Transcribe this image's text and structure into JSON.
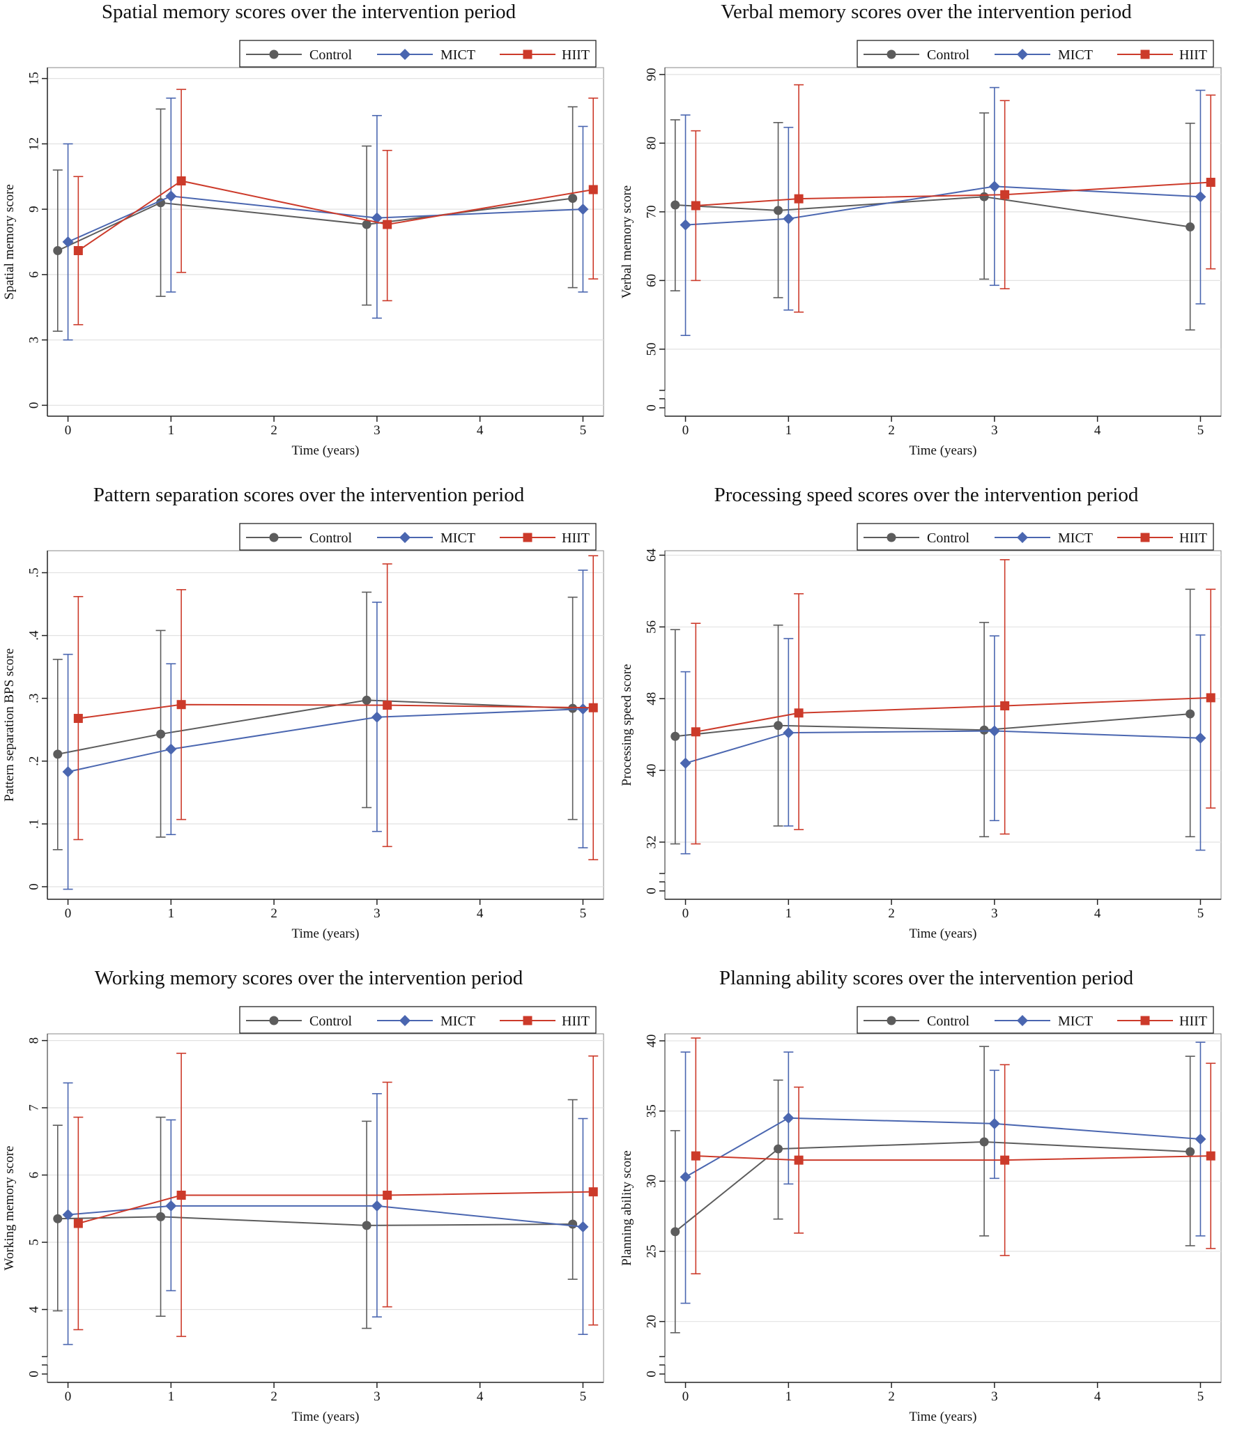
{
  "colors": {
    "control": "#5c5c5c",
    "mict": "#4a66b0",
    "hiit": "#cc3a2a"
  },
  "legend": {
    "control": "Control",
    "mict": "MICT",
    "hiit": "HIIT"
  },
  "chart_data": [
    {
      "type": "line",
      "title": "Spatial memory scores over the intervention period",
      "xlabel": "Time (years)",
      "ylabel": "Spatial memory score",
      "xticks": [
        "0",
        "1",
        "2",
        "3",
        "4",
        "5"
      ],
      "xlim": [
        -0.2,
        5.2
      ],
      "yticks": [
        {
          "v": 0,
          "l": "0"
        },
        {
          "v": 3,
          "l": "3"
        },
        {
          "v": 6,
          "l": "6"
        },
        {
          "v": 9,
          "l": "9"
        },
        {
          "v": 12,
          "l": "12"
        },
        {
          "v": 15,
          "l": "15"
        }
      ],
      "ylim": [
        -0.5,
        15.5
      ],
      "break": false,
      "grid": true,
      "x": [
        0,
        1,
        3,
        5
      ],
      "series": [
        {
          "key": "control",
          "name": "Control",
          "values": [
            7.1,
            9.3,
            8.3,
            9.5
          ],
          "lower": [
            3.4,
            5.0,
            4.6,
            5.4
          ],
          "upper": [
            10.8,
            13.6,
            11.9,
            13.7
          ]
        },
        {
          "key": "mict",
          "name": "MICT",
          "values": [
            7.5,
            9.6,
            8.6,
            9.0
          ],
          "lower": [
            3.0,
            5.2,
            4.0,
            5.2
          ],
          "upper": [
            12.0,
            14.1,
            13.3,
            12.8
          ]
        },
        {
          "key": "hiit",
          "name": "HIIT",
          "values": [
            7.1,
            10.3,
            8.3,
            9.9
          ],
          "lower": [
            3.7,
            6.1,
            4.8,
            5.8
          ],
          "upper": [
            10.5,
            14.5,
            11.7,
            14.1
          ]
        }
      ]
    },
    {
      "type": "line",
      "title": "Verbal memory scores over the intervention period",
      "xlabel": "Time (years)",
      "ylabel": "Verbal memory score",
      "xticks": [
        "0",
        "1",
        "2",
        "3",
        "4",
        "5"
      ],
      "xlim": [
        -0.2,
        5.2
      ],
      "yticks": [
        {
          "v": 50,
          "l": "50"
        },
        {
          "v": 60,
          "l": "60"
        },
        {
          "v": 70,
          "l": "70"
        },
        {
          "v": 80,
          "l": "80"
        },
        {
          "v": 90,
          "l": "90"
        }
      ],
      "ylim": [
        44,
        91
      ],
      "break": true,
      "zero_label": "0",
      "grid": true,
      "x": [
        0,
        1,
        3,
        5
      ],
      "series": [
        {
          "key": "control",
          "name": "Control",
          "values": [
            71.0,
            70.2,
            72.2,
            67.8
          ],
          "lower": [
            58.5,
            57.5,
            60.2,
            52.8
          ],
          "upper": [
            83.4,
            83.0,
            84.4,
            82.9
          ]
        },
        {
          "key": "mict",
          "name": "MICT",
          "values": [
            68.1,
            69.0,
            73.7,
            72.2
          ],
          "lower": [
            52.0,
            55.7,
            59.3,
            56.6
          ],
          "upper": [
            84.1,
            82.3,
            88.1,
            87.7
          ]
        },
        {
          "key": "hiit",
          "name": "HIIT",
          "values": [
            70.9,
            71.9,
            72.5,
            74.3
          ],
          "lower": [
            60.0,
            55.4,
            58.8,
            61.7
          ],
          "upper": [
            81.8,
            88.5,
            86.2,
            87.0
          ]
        }
      ]
    },
    {
      "type": "line",
      "title": "Pattern separation scores over the intervention period",
      "xlabel": "Time (years)",
      "ylabel": "Pattern separation BPS score",
      "xticks": [
        "0",
        "1",
        "2",
        "3",
        "4",
        "5"
      ],
      "xlim": [
        -0.2,
        5.2
      ],
      "yticks": [
        {
          "v": 0,
          "l": "0"
        },
        {
          "v": 0.1,
          "l": ".1"
        },
        {
          "v": 0.2,
          "l": ".2"
        },
        {
          "v": 0.3,
          "l": ".3"
        },
        {
          "v": 0.4,
          "l": ".4"
        },
        {
          "v": 0.5,
          "l": ".5"
        }
      ],
      "ylim": [
        -0.02,
        0.535
      ],
      "break": false,
      "grid": true,
      "x": [
        0,
        1,
        3,
        5
      ],
      "series": [
        {
          "key": "control",
          "name": "Control",
          "values": [
            0.211,
            0.243,
            0.297,
            0.284
          ],
          "lower": [
            0.059,
            0.079,
            0.126,
            0.107
          ],
          "upper": [
            0.362,
            0.408,
            0.469,
            0.461
          ]
        },
        {
          "key": "mict",
          "name": "MICT",
          "values": [
            0.183,
            0.219,
            0.27,
            0.283
          ],
          "lower": [
            -0.004,
            0.083,
            0.088,
            0.062
          ],
          "upper": [
            0.37,
            0.355,
            0.453,
            0.504
          ]
        },
        {
          "key": "hiit",
          "name": "HIIT",
          "values": [
            0.268,
            0.29,
            0.289,
            0.285
          ],
          "lower": [
            0.075,
            0.107,
            0.064,
            0.043
          ],
          "upper": [
            0.462,
            0.473,
            0.514,
            0.527
          ]
        }
      ]
    },
    {
      "type": "line",
      "title": "Processing speed scores over the intervention period",
      "xlabel": "Time (years)",
      "ylabel": "Processing speed score",
      "xticks": [
        "0",
        "1",
        "2",
        "3",
        "4",
        "5"
      ],
      "xlim": [
        -0.2,
        5.2
      ],
      "yticks": [
        {
          "v": 32,
          "l": "32"
        },
        {
          "v": 40,
          "l": "40"
        },
        {
          "v": 48,
          "l": "48"
        },
        {
          "v": 56,
          "l": "56"
        },
        {
          "v": 64,
          "l": "64"
        }
      ],
      "ylim": [
        28.5,
        64.5
      ],
      "break": true,
      "zero_label": "0",
      "grid": true,
      "x": [
        0,
        1,
        3,
        5
      ],
      "series": [
        {
          "key": "control",
          "name": "Control",
          "values": [
            43.8,
            45.0,
            44.5,
            46.3
          ],
          "lower": [
            31.8,
            33.8,
            32.6,
            32.6
          ],
          "upper": [
            55.7,
            56.2,
            56.5,
            60.2
          ]
        },
        {
          "key": "mict",
          "name": "MICT",
          "values": [
            40.8,
            44.2,
            44.4,
            43.6
          ],
          "lower": [
            30.7,
            33.8,
            34.4,
            31.1
          ],
          "upper": [
            51.0,
            54.7,
            55.0,
            55.1
          ]
        },
        {
          "key": "hiit",
          "name": "HIIT",
          "values": [
            44.3,
            46.4,
            47.2,
            48.1
          ],
          "lower": [
            31.8,
            33.4,
            32.9,
            35.8
          ],
          "upper": [
            56.4,
            59.7,
            63.5,
            60.2
          ]
        }
      ]
    },
    {
      "type": "line",
      "title": "Working memory scores over the intervention period",
      "xlabel": "Time (years)",
      "ylabel": "Working memory score",
      "xticks": [
        "0",
        "1",
        "2",
        "3",
        "4",
        "5"
      ],
      "xlim": [
        -0.2,
        5.2
      ],
      "yticks": [
        {
          "v": 4,
          "l": "4"
        },
        {
          "v": 5,
          "l": "5"
        },
        {
          "v": 6,
          "l": "6"
        },
        {
          "v": 7,
          "l": "7"
        },
        {
          "v": 8,
          "l": "8"
        }
      ],
      "ylim": [
        3.3,
        8.1
      ],
      "break": true,
      "zero_label": "0",
      "grid": true,
      "x": [
        0,
        1,
        3,
        5
      ],
      "series": [
        {
          "key": "control",
          "name": "Control",
          "values": [
            5.35,
            5.38,
            5.25,
            5.27
          ],
          "lower": [
            3.98,
            3.9,
            3.72,
            4.45
          ],
          "upper": [
            6.74,
            6.86,
            6.8,
            7.12
          ]
        },
        {
          "key": "mict",
          "name": "MICT",
          "values": [
            5.41,
            5.54,
            5.54,
            5.23
          ],
          "lower": [
            3.48,
            4.28,
            3.89,
            3.63
          ],
          "upper": [
            7.37,
            6.82,
            7.21,
            6.84
          ]
        },
        {
          "key": "hiit",
          "name": "HIIT",
          "values": [
            5.28,
            5.7,
            5.7,
            5.75
          ],
          "lower": [
            3.7,
            3.6,
            4.04,
            3.77
          ],
          "upper": [
            6.86,
            7.81,
            7.38,
            7.77
          ]
        }
      ]
    },
    {
      "type": "line",
      "title": "Planning ability scores over the intervention period",
      "xlabel": "Time (years)",
      "ylabel": "Planning ability score",
      "xticks": [
        "0",
        "1",
        "2",
        "3",
        "4",
        "5"
      ],
      "xlim": [
        -0.2,
        5.2
      ],
      "yticks": [
        {
          "v": 20,
          "l": "20"
        },
        {
          "v": 25,
          "l": "25"
        },
        {
          "v": 30,
          "l": "30"
        },
        {
          "v": 35,
          "l": "35"
        },
        {
          "v": 40,
          "l": "40"
        }
      ],
      "ylim": [
        17.5,
        40.5
      ],
      "break": true,
      "zero_label": "0",
      "grid": true,
      "x": [
        0,
        1,
        3,
        5
      ],
      "series": [
        {
          "key": "control",
          "name": "Control",
          "values": [
            26.4,
            32.3,
            32.8,
            32.1
          ],
          "lower": [
            19.2,
            27.3,
            26.1,
            25.4
          ],
          "upper": [
            33.6,
            37.2,
            39.6,
            38.9
          ]
        },
        {
          "key": "mict",
          "name": "MICT",
          "values": [
            30.3,
            34.5,
            34.1,
            33.0
          ],
          "lower": [
            21.3,
            29.8,
            30.2,
            26.1
          ],
          "upper": [
            39.2,
            39.2,
            37.9,
            39.9
          ]
        },
        {
          "key": "hiit",
          "name": "HIIT",
          "values": [
            31.8,
            31.5,
            31.5,
            31.8
          ],
          "lower": [
            23.4,
            26.3,
            24.7,
            25.2
          ],
          "upper": [
            40.2,
            36.7,
            38.3,
            38.4
          ]
        }
      ]
    }
  ]
}
